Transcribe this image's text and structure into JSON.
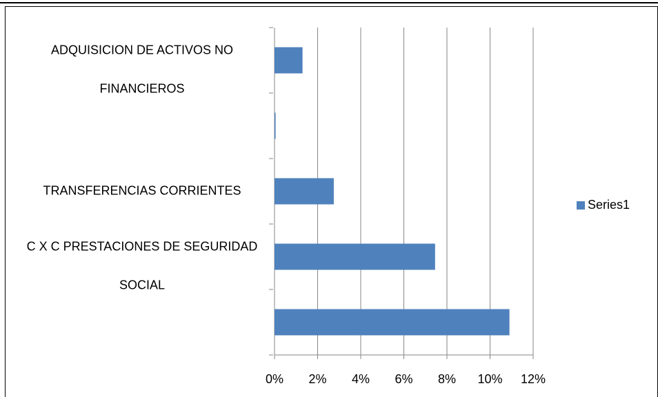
{
  "chart_data": {
    "type": "bar",
    "orientation": "horizontal",
    "categories": [
      "ADQUISICION DE ACTIVOS NO FINANCIEROS",
      null,
      "TRANSFERENCIAS CORRIENTES",
      "C X C PRESTACIONES DE SEGURIDAD SOCIAL",
      null
    ],
    "series": [
      {
        "name": "Series1",
        "color": "#4f81bd",
        "values": [
          1.3,
          0.05,
          2.75,
          7.45,
          10.9
        ]
      }
    ],
    "xlim": [
      0,
      12
    ],
    "xticks": [
      {
        "value": 0,
        "label": "0%"
      },
      {
        "value": 2,
        "label": "2%"
      },
      {
        "value": 4,
        "label": "4%"
      },
      {
        "value": 6,
        "label": "6%"
      },
      {
        "value": 8,
        "label": "8%"
      },
      {
        "value": 10,
        "label": "10%"
      },
      {
        "value": 12,
        "label": "12%"
      }
    ],
    "grid": true,
    "legend": "right"
  }
}
